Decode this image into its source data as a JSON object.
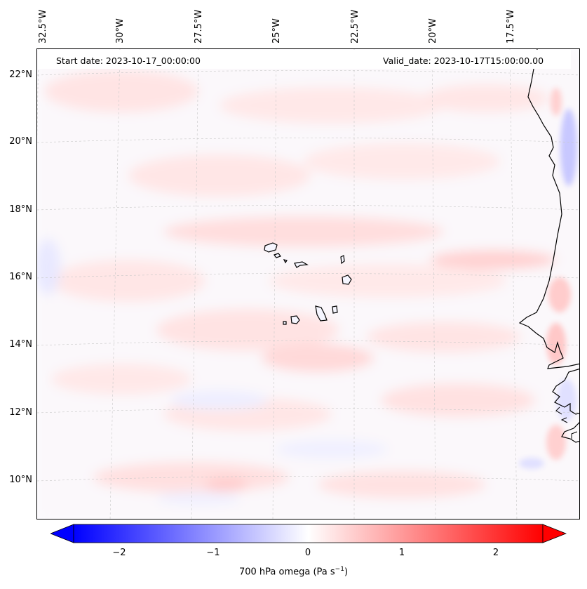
{
  "map": {
    "start_date_text": "Start date: 2023-10-17_00:00:00",
    "valid_date_text": "Valid_date: 2023-10-17T15:00:00.00",
    "longitude_labels": [
      "32.5°W",
      "30°W",
      "27.5°W",
      "25°W",
      "22.5°W",
      "20°W",
      "17.5°W"
    ],
    "latitude_labels": [
      "22°N",
      "20°N",
      "18°N",
      "16°N",
      "14°N",
      "12°N",
      "10°N"
    ],
    "field": "700 hPa omega",
    "background_color": "#fcfcff",
    "coastline_color": "#000000"
  },
  "colorbar": {
    "label_main": "700 hPa omega (Pa s",
    "label_sup": "−1",
    "label_end": ")",
    "ticks": [
      "−2",
      "−1",
      "0",
      "1",
      "2"
    ],
    "min": -2.6,
    "max": 2.6,
    "colors": [
      "#0000ff",
      "#ffffff",
      "#ff0000"
    ],
    "extend": "both"
  }
}
